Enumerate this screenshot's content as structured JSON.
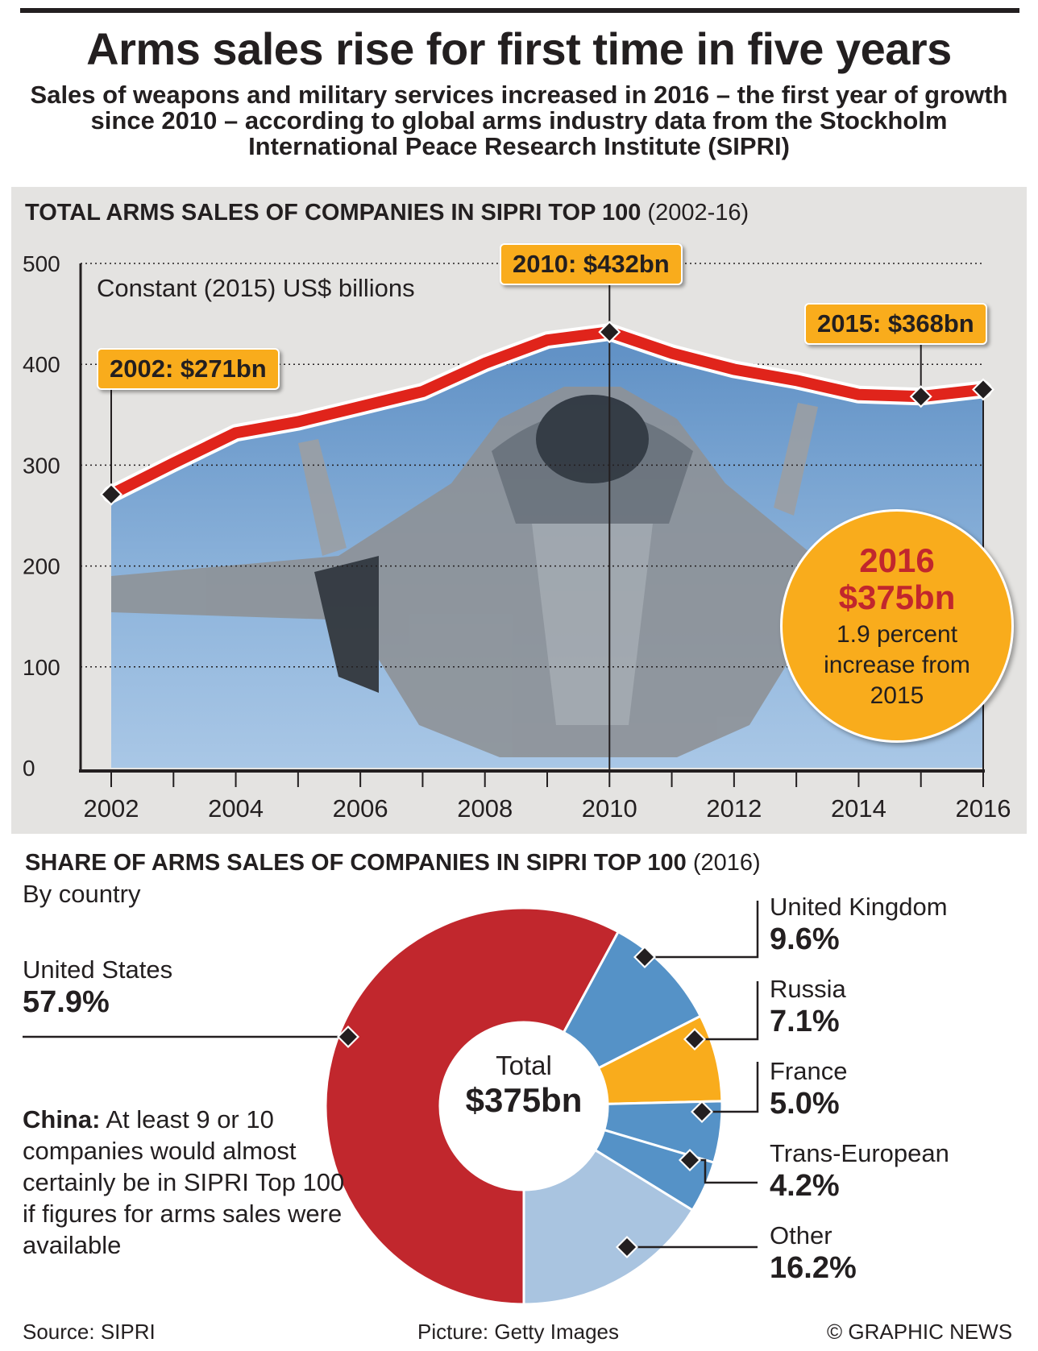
{
  "title": "Arms sales rise for first time in five years",
  "subtitle": "Sales of weapons and military services increased in 2016 – the first year of growth since 2010 – according to global arms industry data from the Stockholm International Peace Research Institute (SIPRI)",
  "line_section": {
    "heading": "TOTAL ARMS SALES OF COMPANIES IN SIPRI TOP 100",
    "heading_note": "(2002-16)",
    "unit_label": "Constant (2015) US$ billions",
    "callout_2002": "2002: $271bn",
    "callout_2010": "2010: $432bn",
    "callout_2015": "2015: $368bn",
    "highlight": {
      "year": "2016",
      "value": "$375bn",
      "note": "1.9 percent increase from 2015"
    }
  },
  "pie_section": {
    "heading": "SHARE OF ARMS SALES OF COMPANIES IN SIPRI TOP 100",
    "heading_note": "(2016)",
    "subheading": "By country",
    "total_title": "Total",
    "total_value": "$375bn",
    "china_bold": "China:",
    "china_text": "At least 9 or 10 companies would almost certainly be in SIPRI Top 100 if figures for arms sales were available"
  },
  "footer": {
    "source": "Source: SIPRI",
    "picture": "Picture: Getty Images",
    "credit": "© GRAPHIC NEWS"
  },
  "colors": {
    "line": "#e0241b",
    "callout": "#f9ac1c",
    "highlight_text": "#c1272d",
    "us": "#c1272d",
    "uk": "#5592c7",
    "russia": "#f9ac1c",
    "france": "#5592c7",
    "trans_european": "#5592c7",
    "other": "#a9c4e0"
  },
  "chart_data": [
    {
      "type": "line",
      "title": "TOTAL ARMS SALES OF COMPANIES IN SIPRI TOP 100 (2002-16)",
      "ylabel": "Constant (2015) US$ billions",
      "x": [
        2002,
        2003,
        2004,
        2005,
        2006,
        2007,
        2008,
        2009,
        2010,
        2011,
        2012,
        2013,
        2014,
        2015,
        2016
      ],
      "values": [
        271,
        302,
        332,
        343,
        358,
        373,
        401,
        424,
        432,
        411,
        395,
        384,
        370,
        368,
        375
      ],
      "ylim": [
        0,
        500
      ],
      "yticks": [
        "0",
        "100",
        "200",
        "300",
        "400",
        "500"
      ],
      "xticks": [
        "2002",
        "2004",
        "2006",
        "2008",
        "2010",
        "2012",
        "2014",
        "2016"
      ],
      "grid": "horizontal dotted"
    },
    {
      "type": "pie",
      "title": "SHARE OF ARMS SALES OF COMPANIES IN SIPRI TOP 100 (2016)",
      "slices": [
        {
          "label": "United States",
          "pct_label": "57.9%",
          "value": 57.9,
          "color": "#c1272d"
        },
        {
          "label": "United Kingdom",
          "pct_label": "9.6%",
          "value": 9.6,
          "color": "#5592c7"
        },
        {
          "label": "Russia",
          "pct_label": "7.1%",
          "value": 7.1,
          "color": "#f9ac1c"
        },
        {
          "label": "France",
          "pct_label": "5.0%",
          "value": 5.0,
          "color": "#5592c7"
        },
        {
          "label": "Trans-European",
          "pct_label": "4.2%",
          "value": 4.2,
          "color": "#5592c7"
        },
        {
          "label": "Other",
          "pct_label": "16.2%",
          "value": 16.2,
          "color": "#a9c4e0"
        }
      ]
    }
  ]
}
